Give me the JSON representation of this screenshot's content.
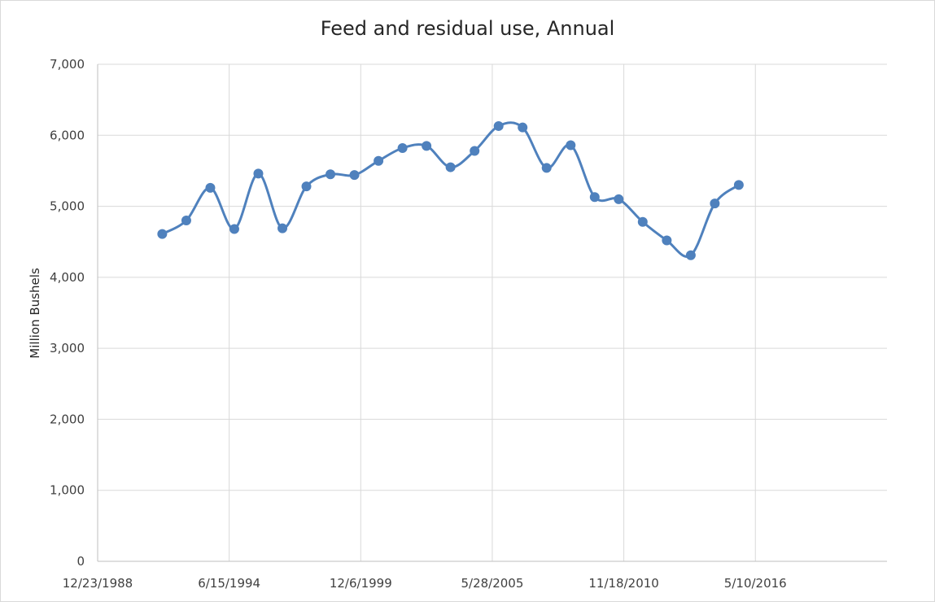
{
  "chart_data": {
    "type": "line",
    "title": "Feed and residual use, Annual",
    "xlabel": "",
    "ylabel": "Million Bushels",
    "x_tick_labels": [
      "12/23/1988",
      "6/15/1994",
      "12/6/1999",
      "5/28/2005",
      "11/18/2010",
      "5/10/2016"
    ],
    "y_tick_labels": [
      "0",
      "1,000",
      "2,000",
      "3,000",
      "4,000",
      "5,000",
      "6,000",
      "7,000"
    ],
    "ylim": [
      0,
      7000
    ],
    "xlim": [
      "12/23/1988",
      "11/1/2021"
    ],
    "grid": true,
    "smoothed": true,
    "line_color": "#4f81bd",
    "series": [
      {
        "x": [
          "9/1/1991",
          "9/1/1992",
          "9/1/1993",
          "9/1/1994",
          "9/1/1995",
          "9/1/1996",
          "9/1/1997",
          "9/1/1998",
          "9/1/1999",
          "9/1/2000",
          "9/1/2001",
          "9/1/2002",
          "9/1/2003",
          "9/1/2004",
          "9/1/2005",
          "9/1/2006",
          "9/1/2007",
          "9/1/2008",
          "9/1/2009",
          "9/1/2010",
          "9/1/2011",
          "9/1/2012",
          "9/1/2013",
          "9/1/2014",
          "9/1/2015"
        ],
        "values": [
          4610,
          4800,
          5260,
          4680,
          5460,
          4690,
          5280,
          5450,
          5440,
          5640,
          5820,
          5850,
          5550,
          5780,
          6130,
          6110,
          5540,
          5860,
          5130,
          5100,
          4780,
          4520,
          4310,
          5040,
          5300
        ]
      }
    ]
  }
}
